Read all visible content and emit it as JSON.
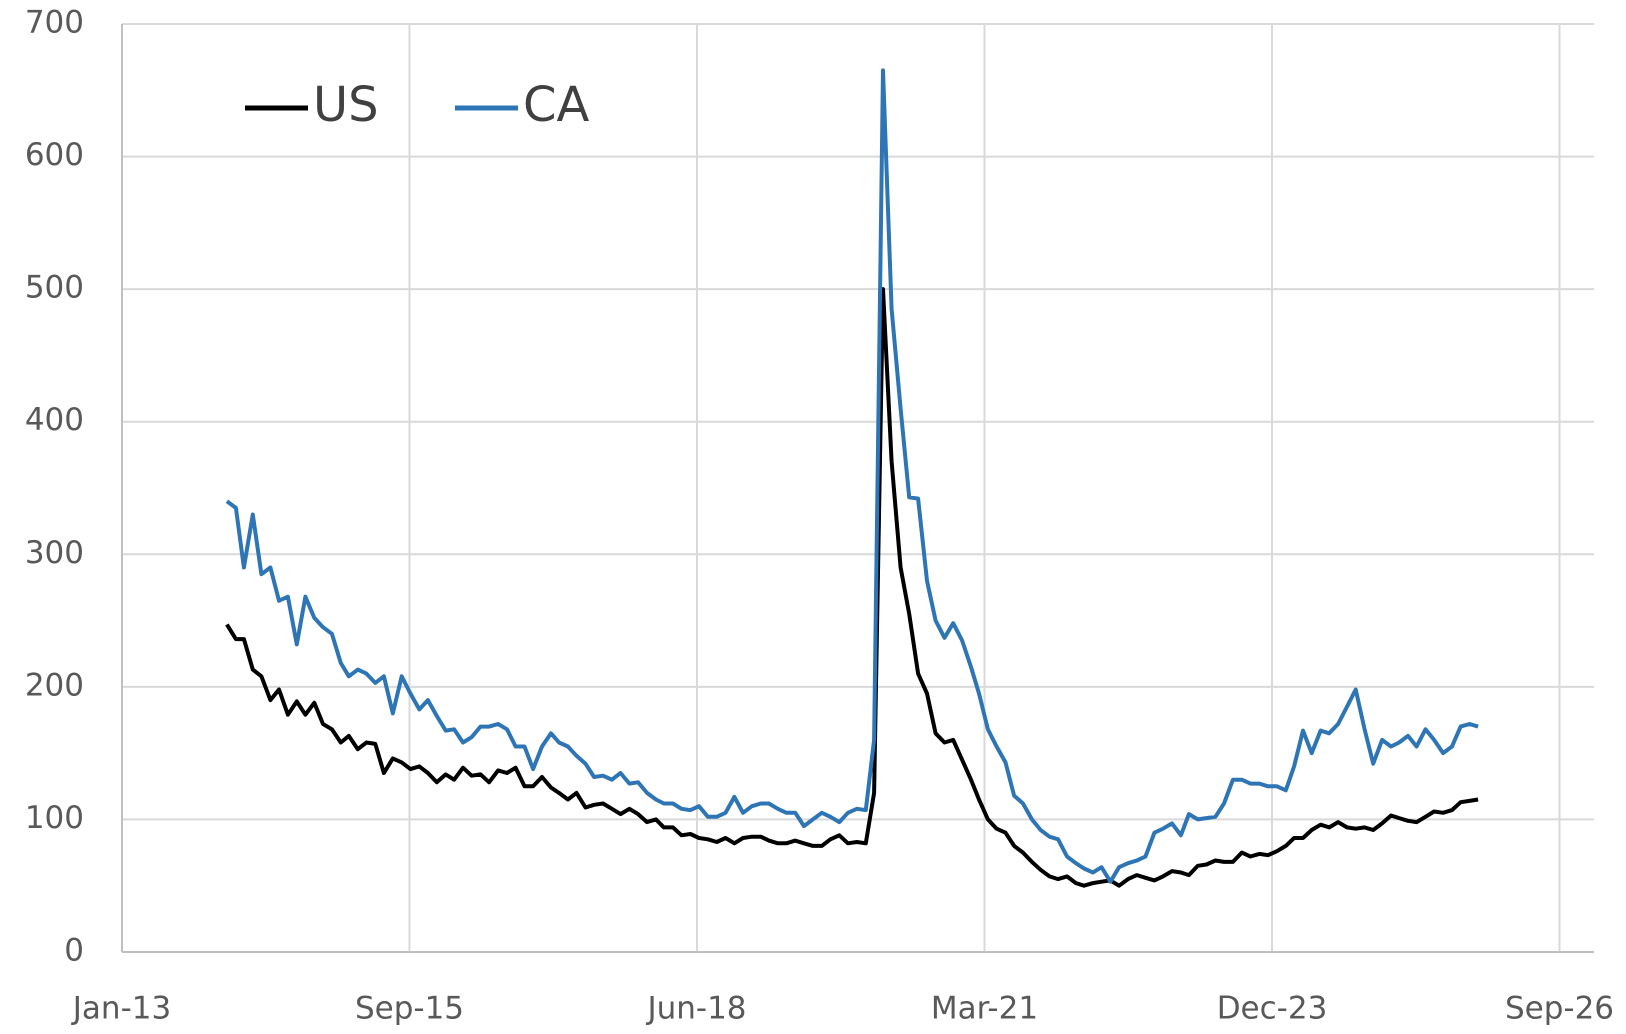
{
  "chart_data": {
    "type": "line",
    "x": [
      "2014-01",
      "2014-02",
      "2014-03",
      "2014-04",
      "2014-05",
      "2014-06",
      "2014-07",
      "2014-08",
      "2014-09",
      "2014-10",
      "2014-11",
      "2014-12",
      "2015-01",
      "2015-02",
      "2015-03",
      "2015-04",
      "2015-05",
      "2015-06",
      "2015-07",
      "2015-08",
      "2015-09",
      "2015-10",
      "2015-11",
      "2015-12",
      "2016-01",
      "2016-02",
      "2016-03",
      "2016-04",
      "2016-05",
      "2016-06",
      "2016-07",
      "2016-08",
      "2016-09",
      "2016-10",
      "2016-11",
      "2016-12",
      "2017-01",
      "2017-02",
      "2017-03",
      "2017-04",
      "2017-05",
      "2017-06",
      "2017-07",
      "2017-08",
      "2017-09",
      "2017-10",
      "2017-11",
      "2017-12",
      "2018-01",
      "2018-02",
      "2018-03",
      "2018-04",
      "2018-05",
      "2018-06",
      "2018-07",
      "2018-08",
      "2018-09",
      "2018-10",
      "2018-11",
      "2018-12",
      "2019-01",
      "2019-02",
      "2019-03",
      "2019-04",
      "2019-05",
      "2019-06",
      "2019-07",
      "2019-08",
      "2019-09",
      "2019-10",
      "2019-11",
      "2019-12",
      "2020-01",
      "2020-02",
      "2020-03",
      "2020-04",
      "2020-05",
      "2020-06",
      "2020-07",
      "2020-08",
      "2020-09",
      "2020-10",
      "2020-11",
      "2020-12",
      "2021-01",
      "2021-02",
      "2021-03",
      "2021-04",
      "2021-05",
      "2021-06",
      "2021-07",
      "2021-08",
      "2021-09",
      "2021-10",
      "2021-11",
      "2021-12",
      "2022-01",
      "2022-02",
      "2022-03",
      "2022-04",
      "2022-05",
      "2022-06",
      "2022-07",
      "2022-08",
      "2022-09",
      "2022-10",
      "2022-11",
      "2022-12",
      "2023-01",
      "2023-02",
      "2023-03",
      "2023-04",
      "2023-05",
      "2023-06",
      "2023-07",
      "2023-08",
      "2023-09",
      "2023-10",
      "2023-11",
      "2023-12",
      "2024-01",
      "2024-02",
      "2024-03",
      "2024-04",
      "2024-05",
      "2024-06",
      "2024-07",
      "2024-08",
      "2024-09",
      "2024-10",
      "2024-11",
      "2024-12",
      "2025-01",
      "2025-02",
      "2025-03",
      "2025-04",
      "2025-05",
      "2025-06",
      "2025-07",
      "2025-08",
      "2025-09",
      "2025-10",
      "2025-11",
      "2025-12"
    ],
    "series": [
      {
        "name": "US",
        "color": "#000000",
        "values": [
          247,
          236,
          236,
          213,
          208,
          190,
          198,
          179,
          189,
          179,
          188,
          172,
          168,
          158,
          163,
          153,
          158,
          157,
          135,
          146,
          143,
          138,
          140,
          135,
          128,
          134,
          130,
          139,
          133,
          134,
          128,
          137,
          135,
          139,
          125,
          125,
          132,
          124,
          120,
          115,
          120,
          109,
          111,
          112,
          108,
          104,
          108,
          104,
          98,
          100,
          94,
          94,
          88,
          89,
          86,
          85,
          83,
          86,
          82,
          86,
          87,
          87,
          84,
          82,
          82,
          84,
          82,
          80,
          80,
          85,
          88,
          82,
          83,
          82,
          120,
          500,
          370,
          290,
          255,
          210,
          195,
          165,
          158,
          160,
          145,
          130,
          115,
          100,
          93,
          90,
          80,
          75,
          68,
          62,
          57,
          55,
          57,
          52,
          50,
          52,
          53,
          54,
          50,
          55,
          58,
          56,
          54,
          57,
          61,
          60,
          58,
          65,
          66,
          69,
          68,
          68,
          75,
          72,
          74,
          73,
          76,
          80,
          86,
          86,
          92,
          96,
          94,
          98,
          94,
          93,
          94,
          92,
          97,
          103,
          101,
          99,
          98,
          102,
          106,
          105,
          107,
          113,
          114,
          115
        ]
      },
      {
        "name": "CA",
        "color": "#2e75b6",
        "values": [
          340,
          335,
          290,
          330,
          285,
          290,
          265,
          268,
          232,
          268,
          252,
          245,
          240,
          218,
          208,
          213,
          210,
          203,
          208,
          180,
          208,
          195,
          183,
          190,
          178,
          167,
          168,
          158,
          162,
          170,
          170,
          172,
          168,
          155,
          155,
          138,
          155,
          165,
          158,
          155,
          148,
          142,
          132,
          133,
          130,
          135,
          127,
          128,
          120,
          115,
          112,
          112,
          108,
          107,
          110,
          102,
          102,
          105,
          117,
          105,
          110,
          112,
          112,
          108,
          105,
          105,
          95,
          100,
          105,
          102,
          98,
          105,
          108,
          107,
          160,
          665,
          485,
          410,
          343,
          342,
          280,
          250,
          237,
          248,
          235,
          215,
          195,
          168,
          155,
          143,
          118,
          112,
          100,
          92,
          87,
          85,
          72,
          67,
          63,
          60,
          64,
          53,
          64,
          67,
          69,
          72,
          90,
          93,
          97,
          88,
          104,
          100,
          101,
          102,
          112,
          130,
          130,
          127,
          127,
          125,
          125,
          122,
          140,
          167,
          150,
          167,
          165,
          172,
          185,
          198,
          168,
          142,
          160,
          155,
          158,
          163,
          155,
          168,
          160,
          150,
          155,
          170,
          172,
          170
        ]
      }
    ],
    "xlim": [
      "2013-01-01",
      "2027-01-08"
    ],
    "xticks": [
      {
        "value": "2013-01-01",
        "label": "Jan-13"
      },
      {
        "value": "2015-09-28",
        "label": "Sep-15"
      },
      {
        "value": "2018-06-24",
        "label": "Jun-18"
      },
      {
        "value": "2021-03-20",
        "label": "Mar-21"
      },
      {
        "value": "2023-12-15",
        "label": "Dec-23"
      },
      {
        "value": "2026-09-10",
        "label": "Sep-26"
      }
    ],
    "ylim": [
      0,
      700
    ],
    "yticks": [
      0,
      100,
      200,
      300,
      400,
      500,
      600,
      700
    ],
    "grid": true,
    "legend": "upper left"
  }
}
